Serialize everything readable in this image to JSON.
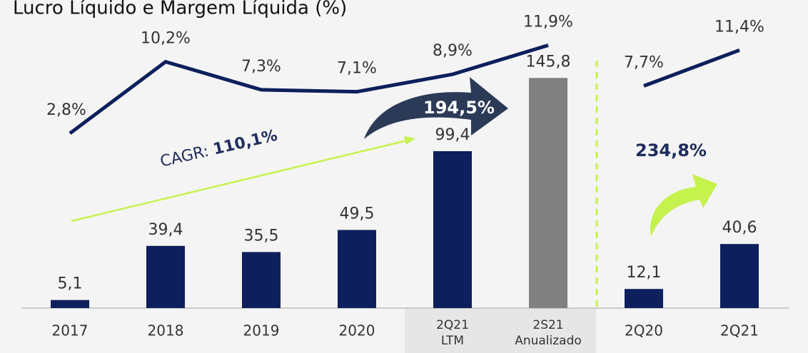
{
  "chart_data": {
    "type": "bar",
    "title": "Lucro Líquido e Margem Líquida (%)",
    "categories": [
      [
        "2017"
      ],
      [
        "2018"
      ],
      [
        "2019"
      ],
      [
        "2020"
      ],
      [
        "2Q21",
        "LTM"
      ],
      [
        "2S21",
        "Anualizado"
      ],
      [
        "2Q20"
      ],
      [
        "2Q21"
      ]
    ],
    "values": [
      5.1,
      39.4,
      35.5,
      49.5,
      99.4,
      145.8,
      12.1,
      40.6
    ],
    "value_labels": [
      "5,1",
      "39,4",
      "35,5",
      "49,5",
      "99,4",
      "145,8",
      "12,1",
      "40,6"
    ],
    "colors": [
      "#0d1f5c",
      "#0d1f5c",
      "#0d1f5c",
      "#0d1f5c",
      "#0d1f5c",
      "#808080",
      "#0d1f5c",
      "#0d1f5c"
    ],
    "ylim": [
      0,
      150
    ],
    "y2lim": [
      0,
      14
    ],
    "series": [
      {
        "type": "line",
        "axis": "y2",
        "color": "#0d1f5c",
        "values": [
          2.8,
          10.2,
          7.3,
          7.1,
          8.9,
          11.9,
          null,
          null
        ],
        "value_labels": [
          "2,8%",
          "10,2%",
          "7,3%",
          "7,1%",
          "8,9%",
          "11,9%",
          null,
          null
        ]
      },
      {
        "type": "line",
        "axis": "y2",
        "color": "#0d1f5c",
        "values": [
          null,
          null,
          null,
          null,
          null,
          null,
          7.7,
          11.4
        ],
        "value_labels": [
          null,
          null,
          null,
          null,
          null,
          null,
          "7,7%",
          "11,4%"
        ]
      }
    ],
    "annotations": {
      "cagr_label": "CAGR:",
      "cagr_value": "110,1%",
      "growth_ltm": "194,5%",
      "growth_quarter": "234,8%"
    }
  }
}
